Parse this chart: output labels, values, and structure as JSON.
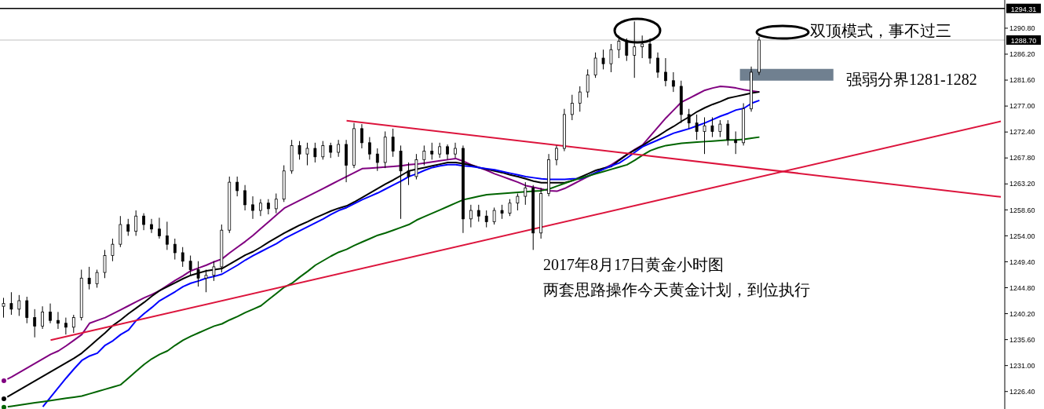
{
  "chart_data": {
    "type": "candlestick",
    "annotations": [
      "双顶模式，事不过三",
      "2017年8月17日黄金小时图",
      "两套思路操作今天黄金计划，到位执行"
    ],
    "categories": [
      null,
      null,
      null,
      null,
      null,
      null,
      null,
      null,
      null,
      null,
      null,
      null,
      null,
      null,
      null,
      null,
      null,
      null,
      null,
      null,
      null,
      null,
      null,
      null,
      null,
      null,
      null,
      null,
      null,
      null,
      null,
      null,
      null,
      null,
      null,
      null,
      null,
      null,
      null,
      null,
      null,
      null,
      null,
      null,
      null,
      null,
      null,
      null,
      null,
      null,
      null,
      null,
      null,
      null,
      null,
      null,
      null,
      null,
      null,
      null,
      null,
      null,
      null,
      null,
      null,
      null,
      null,
      null,
      null,
      null,
      null,
      null,
      null,
      null,
      null,
      null,
      null,
      null,
      null,
      null,
      null,
      null,
      null,
      null,
      null,
      null,
      null,
      null,
      null,
      null,
      null,
      null,
      null,
      null,
      null,
      null,
      null,
      null,
      null,
      null,
      null,
      null,
      null,
      null,
      null,
      null,
      null,
      null,
      null,
      null,
      null,
      null,
      null,
      null,
      null,
      null,
      null,
      null,
      null,
      null,
      null,
      null,
      null,
      null,
      null,
      null,
      null,
      null,
      null
    ],
    "color": "#000000",
    "ohlc": [
      [
        1241.5,
        1243.0,
        1239.5,
        1242.0
      ],
      [
        1242.0,
        1244.0,
        1240.0,
        1241.0
      ],
      [
        1241.0,
        1243.5,
        1239.8,
        1242.5
      ],
      [
        1242.5,
        1243.2,
        1238.5,
        1239.5
      ],
      [
        1239.5,
        1241.0,
        1236.0,
        1238.0
      ],
      [
        1238.0,
        1241.5,
        1237.5,
        1240.5
      ],
      [
        1240.5,
        1242.0,
        1238.5,
        1239.0
      ],
      [
        1239.0,
        1240.5,
        1237.5,
        1238.5
      ],
      [
        1238.5,
        1239.5,
        1236.5,
        1237.8
      ],
      [
        1237.8,
        1240.0,
        1236.8,
        1239.5
      ],
      [
        1239.5,
        1248.0,
        1239.0,
        1246.5
      ],
      [
        1246.5,
        1248.5,
        1244.5,
        1245.5
      ],
      [
        1245.5,
        1248.0,
        1244.8,
        1247.5
      ],
      [
        1247.5,
        1251.5,
        1246.5,
        1250.5
      ],
      [
        1250.5,
        1253.5,
        1249.5,
        1252.5
      ],
      [
        1252.5,
        1257.5,
        1252.0,
        1256.0
      ],
      [
        1256.0,
        1257.0,
        1254.0,
        1254.8
      ],
      [
        1254.8,
        1258.5,
        1254.0,
        1257.5
      ],
      [
        1257.5,
        1258.0,
        1255.0,
        1256.0
      ],
      [
        1256.0,
        1257.0,
        1254.5,
        1255.2
      ],
      [
        1255.2,
        1257.2,
        1253.5,
        1254.0
      ],
      [
        1254.0,
        1256.5,
        1251.5,
        1252.5
      ],
      [
        1252.5,
        1253.5,
        1249.8,
        1251.0
      ],
      [
        1251.0,
        1252.0,
        1248.5,
        1249.5
      ],
      [
        1249.5,
        1250.5,
        1247.0,
        1248.0
      ],
      [
        1248.0,
        1249.5,
        1245.0,
        1246.5
      ],
      [
        1246.5,
        1248.0,
        1244.0,
        1247.0
      ],
      [
        1247.0,
        1249.5,
        1246.0,
        1248.5
      ],
      [
        1248.5,
        1256.0,
        1247.5,
        1255.0
      ],
      [
        1255.0,
        1264.5,
        1254.5,
        1263.5
      ],
      [
        1263.5,
        1264.5,
        1261.0,
        1262.0
      ],
      [
        1262.0,
        1263.0,
        1258.5,
        1259.5
      ],
      [
        1259.5,
        1261.0,
        1257.0,
        1258.5
      ],
      [
        1258.5,
        1260.5,
        1257.5,
        1259.8
      ],
      [
        1259.8,
        1260.5,
        1257.8,
        1258.8
      ],
      [
        1258.8,
        1261.5,
        1258.0,
        1260.5
      ],
      [
        1260.5,
        1266.5,
        1260.0,
        1265.5
      ],
      [
        1265.5,
        1271.0,
        1265.0,
        1270.0
      ],
      [
        1270.0,
        1270.8,
        1267.5,
        1268.5
      ],
      [
        1268.5,
        1270.5,
        1266.5,
        1269.5
      ],
      [
        1269.5,
        1270.5,
        1267.0,
        1268.0
      ],
      [
        1268.0,
        1270.8,
        1267.5,
        1270.0
      ],
      [
        1270.0,
        1270.5,
        1267.8,
        1268.8
      ],
      [
        1268.8,
        1271.0,
        1268.0,
        1270.2
      ],
      [
        1270.2,
        1271.0,
        1263.5,
        1266.5
      ],
      [
        1266.5,
        1274.0,
        1266.0,
        1273.0
      ],
      [
        1273.0,
        1273.8,
        1269.5,
        1270.5
      ],
      [
        1270.5,
        1271.5,
        1267.5,
        1268.5
      ],
      [
        1268.5,
        1269.5,
        1265.5,
        1267.0
      ],
      [
        1267.0,
        1272.5,
        1266.0,
        1271.5
      ],
      [
        1271.5,
        1273.0,
        1268.0,
        1269.0
      ],
      [
        1269.0,
        1270.0,
        1257.0,
        1265.5
      ],
      [
        1265.5,
        1267.0,
        1263.0,
        1264.5
      ],
      [
        1264.5,
        1268.5,
        1264.0,
        1267.5
      ],
      [
        1267.5,
        1270.0,
        1266.5,
        1269.0
      ],
      [
        1269.0,
        1270.5,
        1267.5,
        1268.5
      ],
      [
        1268.5,
        1270.5,
        1267.8,
        1269.8
      ],
      [
        1269.8,
        1270.2,
        1267.5,
        1268.5
      ],
      [
        1268.5,
        1270.5,
        1267.8,
        1269.5
      ],
      [
        1269.5,
        1270.0,
        1254.5,
        1257.0
      ],
      [
        1257.0,
        1259.5,
        1255.5,
        1258.5
      ],
      [
        1258.5,
        1259.5,
        1256.5,
        1257.5
      ],
      [
        1257.5,
        1258.5,
        1255.5,
        1256.5
      ],
      [
        1256.5,
        1259.0,
        1256.0,
        1258.5
      ],
      [
        1258.5,
        1259.5,
        1257.0,
        1258.0
      ],
      [
        1258.0,
        1260.5,
        1257.5,
        1259.8
      ],
      [
        1259.8,
        1261.5,
        1258.5,
        1261.0
      ],
      [
        1261.0,
        1263.5,
        1259.5,
        1262.5
      ],
      [
        1262.5,
        1263.0,
        1251.5,
        1254.5
      ],
      [
        1254.5,
        1262.5,
        1253.5,
        1261.5
      ],
      [
        1261.5,
        1268.5,
        1261.0,
        1267.5
      ],
      [
        1267.5,
        1270.0,
        1266.5,
        1269.5
      ],
      [
        1269.5,
        1276.5,
        1269.0,
        1275.5
      ],
      [
        1275.5,
        1279.0,
        1274.5,
        1277.5
      ],
      [
        1277.5,
        1280.5,
        1276.0,
        1279.5
      ],
      [
        1279.5,
        1283.5,
        1278.5,
        1282.5
      ],
      [
        1282.5,
        1286.5,
        1282.0,
        1285.5
      ],
      [
        1285.5,
        1287.0,
        1283.5,
        1284.5
      ],
      [
        1284.5,
        1288.0,
        1283.0,
        1287.0
      ],
      [
        1287.0,
        1289.5,
        1285.5,
        1288.5
      ],
      [
        1288.5,
        1289.0,
        1285.0,
        1286.0
      ],
      [
        1286.0,
        1292.0,
        1282.0,
        1287.5
      ],
      [
        1287.5,
        1289.5,
        1285.5,
        1288.0
      ],
      [
        1288.0,
        1289.0,
        1284.5,
        1285.5
      ],
      [
        1285.5,
        1286.5,
        1282.0,
        1283.0
      ],
      [
        1283.0,
        1285.5,
        1280.5,
        1281.5
      ],
      [
        1281.5,
        1283.0,
        1279.5,
        1280.5
      ],
      [
        1280.5,
        1281.5,
        1274.0,
        1275.5
      ],
      [
        1275.5,
        1276.5,
        1273.0,
        1274.0
      ],
      [
        1274.0,
        1275.5,
        1271.0,
        1272.5
      ],
      [
        1272.5,
        1275.0,
        1268.5,
        1273.5
      ],
      [
        1273.5,
        1275.0,
        1271.5,
        1272.5
      ],
      [
        1272.5,
        1274.5,
        1271.5,
        1273.8
      ],
      [
        1273.8,
        1274.5,
        1270.0,
        1271.0
      ],
      [
        1271.0,
        1272.5,
        1268.5,
        1270.5
      ],
      [
        1270.5,
        1277.5,
        1270.0,
        1276.5
      ],
      [
        1276.5,
        1284.0,
        1276.0,
        1283.0
      ],
      [
        1283.0,
        1289.3,
        1282.5,
        1288.7
      ],
      null,
      null,
      null,
      null,
      null,
      null,
      null,
      null,
      null,
      null,
      null,
      null,
      null,
      null,
      null,
      null,
      null,
      null,
      null,
      null,
      null,
      null,
      null,
      null,
      null,
      null,
      null,
      null,
      null,
      null,
      null
    ],
    "series": [
      {
        "type": "line",
        "color": "#800080",
        "values": [
          1228.3,
          1229.0,
          1229.8,
          1230.6,
          1231.4,
          1232.2,
          1233.0,
          1233.6,
          1234.5,
          1235.5,
          1236.5,
          1238.5,
          1239.0,
          1239.5,
          1240.2,
          1240.9,
          1241.6,
          1242.3,
          1243.0,
          1243.6,
          1244.3,
          1245.2,
          1246.1,
          1246.9,
          1247.8,
          1248.3,
          1248.8,
          1249.4,
          1249.9,
          1251.0,
          1252.0,
          1253.0,
          1254.1,
          1255.3,
          1256.5,
          1257.7,
          1258.9,
          1259.6,
          1260.3,
          1261.0,
          1261.7,
          1262.4,
          1263.1,
          1263.8,
          1264.5,
          1265.2,
          1265.9,
          1266.0,
          1266.1,
          1266.2,
          1266.3,
          1266.4,
          1266.6,
          1266.7,
          1266.9,
          1267.1,
          1267.3,
          1267.5,
          1267.7,
          1267.2,
          1266.6,
          1266.1,
          1265.6,
          1265.0,
          1264.5,
          1264.0,
          1263.5,
          1262.9,
          1262.6,
          1262.3,
          1262.0,
          1261.9,
          1262.4,
          1263.1,
          1263.8,
          1264.5,
          1265.2,
          1265.9,
          1266.6,
          1267.5,
          1268.4,
          1269.3,
          1270.1,
          1271.7,
          1273.3,
          1274.9,
          1276.3,
          1277.7,
          1278.4,
          1279.1,
          1279.8,
          1280.2,
          1280.5,
          1280.4,
          1280.2,
          1279.9,
          1279.7,
          1279.5,
          null,
          null,
          null,
          null,
          null,
          null,
          null,
          null,
          null,
          null,
          null,
          null,
          null,
          null,
          null,
          null,
          null,
          null,
          null,
          null,
          null,
          null,
          null,
          null,
          null,
          null,
          null,
          null,
          null,
          null,
          null
        ]
      },
      {
        "type": "line",
        "color": "#000000",
        "values": [
          1225.1,
          1225.9,
          1226.7,
          1227.5,
          1228.3,
          1229.1,
          1229.9,
          1230.7,
          1231.5,
          1232.3,
          1233.2,
          1234.4,
          1235.6,
          1236.8,
          1238.1,
          1239.1,
          1240.2,
          1241.2,
          1242.2,
          1243.3,
          1244.3,
          1245.0,
          1245.7,
          1246.4,
          1247.0,
          1247.4,
          1247.8,
          1248.0,
          1248.2,
          1249.0,
          1249.8,
          1250.6,
          1251.2,
          1252.0,
          1252.9,
          1253.7,
          1254.5,
          1255.2,
          1255.9,
          1256.5,
          1257.2,
          1257.8,
          1258.4,
          1258.9,
          1259.3,
          1260.0,
          1260.8,
          1261.6,
          1262.4,
          1263.2,
          1263.9,
          1264.7,
          1265.5,
          1265.8,
          1266.1,
          1266.4,
          1266.7,
          1267.0,
          1267.0,
          1266.8,
          1266.5,
          1266.1,
          1265.8,
          1265.5,
          1265.2,
          1264.8,
          1264.5,
          1264.1,
          1263.7,
          1263.4,
          1263.4,
          1263.4,
          1263.4,
          1263.8,
          1264.4,
          1265.0,
          1265.6,
          1266.0,
          1266.3,
          1267.4,
          1268.4,
          1269.2,
          1270.0,
          1270.9,
          1271.7,
          1272.6,
          1273.4,
          1274.3,
          1275.1,
          1276.0,
          1276.7,
          1277.3,
          1277.8,
          1278.4,
          1278.7,
          1279.0,
          1279.3,
          1279.5,
          null,
          null,
          null,
          null,
          null,
          null,
          null,
          null,
          null,
          null,
          null,
          null,
          null,
          null,
          null,
          null,
          null,
          null,
          null,
          null,
          null,
          null,
          null,
          null,
          null,
          null,
          null,
          null,
          null,
          null,
          null
        ]
      },
      {
        "type": "line",
        "color": "#0000ff",
        "values": [
          null,
          null,
          null,
          null,
          null,
          1223.7,
          1225.4,
          1227.1,
          1228.8,
          1230.4,
          1231.9,
          1232.7,
          1233.2,
          1234.6,
          1235.4,
          1236.5,
          1237.3,
          1239.0,
          1240.2,
          1241.3,
          1242.5,
          1243.3,
          1244.1,
          1245.0,
          1245.6,
          1246.0,
          1246.5,
          1246.8,
          1247.2,
          1248.0,
          1248.8,
          1249.7,
          1250.5,
          1251.2,
          1251.9,
          1252.6,
          1253.5,
          1254.2,
          1254.9,
          1255.6,
          1256.3,
          1257.0,
          1257.8,
          1258.5,
          1259.0,
          1259.7,
          1260.4,
          1261.0,
          1261.6,
          1262.3,
          1263.0,
          1263.7,
          1264.5,
          1265.0,
          1265.6,
          1266.1,
          1266.4,
          1266.6,
          1266.6,
          1266.4,
          1266.3,
          1266.1,
          1265.9,
          1265.7,
          1265.4,
          1265.1,
          1264.8,
          1264.5,
          1264.3,
          1264.1,
          1264.0,
          1264.0,
          1264.0,
          1264.1,
          1264.1,
          1264.6,
          1265.2,
          1265.8,
          1266.4,
          1266.9,
          1267.8,
          1268.8,
          1269.8,
          1270.4,
          1271.0,
          1271.6,
          1272.2,
          1272.6,
          1273.0,
          1273.5,
          1274.0,
          1274.6,
          1275.2,
          1275.7,
          1276.3,
          1276.6,
          1277.5,
          1278.0,
          null,
          null,
          null,
          null,
          null,
          null,
          null,
          null,
          null,
          null,
          null,
          null,
          null,
          null,
          null,
          null,
          null,
          null,
          null,
          null,
          null,
          null,
          null,
          null,
          null,
          null,
          null,
          null,
          null,
          null,
          null
        ]
      },
      {
        "type": "line",
        "color": "#006400",
        "values": [
          1223.6,
          1223.8,
          1224.0,
          1224.2,
          1224.4,
          1224.6,
          1224.8,
          1225.0,
          1225.2,
          1225.4,
          1225.6,
          1226.0,
          1226.4,
          1226.8,
          1227.2,
          1227.6,
          1228.8,
          1230.0,
          1231.2,
          1232.2,
          1233.0,
          1233.6,
          1234.6,
          1235.5,
          1236.2,
          1236.8,
          1237.4,
          1238.0,
          1238.4,
          1239.1,
          1239.7,
          1240.4,
          1241.0,
          1241.6,
          1242.7,
          1243.8,
          1244.9,
          1245.6,
          1246.7,
          1247.7,
          1248.8,
          1249.6,
          1250.4,
          1251.1,
          1251.6,
          1252.3,
          1252.9,
          1253.5,
          1254.1,
          1254.5,
          1255.0,
          1255.5,
          1256.0,
          1256.8,
          1257.4,
          1258.0,
          1258.6,
          1259.2,
          1259.8,
          1260.4,
          1260.7,
          1261.0,
          1261.3,
          1261.4,
          1261.5,
          1261.6,
          1261.7,
          1261.8,
          1261.9,
          1262.0,
          1262.3,
          1262.8,
          1263.3,
          1263.8,
          1264.2,
          1264.6,
          1265.0,
          1265.4,
          1265.8,
          1266.2,
          1266.6,
          1267.4,
          1268.3,
          1269.1,
          1269.6,
          1270.0,
          1270.2,
          1270.4,
          1270.5,
          1270.6,
          1270.7,
          1270.8,
          1270.9,
          1271.0,
          1271.0,
          1271.1,
          1271.3,
          1271.5,
          null,
          null,
          null,
          null,
          null,
          null,
          null,
          null,
          null,
          null,
          null,
          null,
          null,
          null,
          null,
          null,
          null,
          null,
          null,
          null,
          null,
          null,
          null,
          null,
          null,
          null,
          null,
          null,
          null,
          null,
          null
        ]
      },
      {
        "type": "line",
        "color": "#dc143c",
        "values": [
          null,
          null,
          null,
          null,
          null,
          null,
          1235.5,
          null,
          null,
          null,
          null,
          null,
          null,
          null,
          null,
          null,
          null,
          null,
          null,
          null,
          null,
          null,
          null,
          null,
          null,
          null,
          null,
          null,
          null,
          null,
          null,
          null,
          null,
          null,
          null,
          null,
          null,
          null,
          null,
          null,
          null,
          null,
          null,
          null,
          null,
          null,
          null,
          null,
          null,
          null,
          null,
          null,
          null,
          null,
          null,
          null,
          null,
          null,
          null,
          null,
          null,
          null,
          null,
          null,
          null,
          null,
          null,
          null,
          null,
          null,
          null,
          null,
          null,
          null,
          null,
          null,
          null,
          null,
          null,
          null,
          null,
          null,
          null,
          null,
          null,
          null,
          null,
          null,
          null,
          null,
          null,
          null,
          null,
          null,
          null,
          null,
          null,
          null,
          null,
          null,
          null,
          null,
          null,
          null,
          null,
          null,
          null,
          null,
          null,
          null,
          null,
          null,
          null,
          null,
          null,
          null,
          null,
          null,
          null,
          null,
          null,
          null,
          null,
          null,
          null,
          null,
          null,
          null,
          1274.3
        ]
      },
      {
        "type": "line",
        "color": "#dc143c",
        "values": [
          null,
          null,
          null,
          null,
          null,
          null,
          null,
          null,
          null,
          null,
          null,
          null,
          null,
          null,
          null,
          null,
          null,
          null,
          null,
          null,
          null,
          null,
          null,
          null,
          null,
          null,
          null,
          null,
          null,
          null,
          null,
          null,
          null,
          null,
          null,
          null,
          null,
          null,
          null,
          null,
          null,
          null,
          null,
          null,
          1274.4,
          null,
          null,
          null,
          null,
          null,
          null,
          null,
          null,
          null,
          null,
          null,
          null,
          null,
          null,
          null,
          null,
          null,
          null,
          null,
          null,
          null,
          null,
          null,
          null,
          null,
          null,
          null,
          null,
          null,
          null,
          null,
          null,
          null,
          null,
          null,
          null,
          null,
          null,
          null,
          null,
          null,
          null,
          null,
          null,
          null,
          null,
          null,
          null,
          null,
          null,
          null,
          null,
          null,
          null,
          null,
          null,
          null,
          null,
          null,
          null,
          null,
          null,
          null,
          null,
          null,
          null,
          null,
          null,
          null,
          null,
          null,
          null,
          null,
          null,
          null,
          null,
          null,
          null,
          null,
          null,
          null,
          null,
          null,
          1260.9
        ]
      }
    ],
    "ylim": [
      1223.3,
      1295.8
    ],
    "yticks": [
      {
        "value": 1226.4,
        "label": "1226.40"
      },
      {
        "value": 1231.0,
        "label": "1231.00"
      },
      {
        "value": 1235.6,
        "label": "1235.60"
      },
      {
        "value": 1240.2,
        "label": "1240.20"
      },
      {
        "value": 1244.8,
        "label": "1244.80"
      },
      {
        "value": 1249.4,
        "label": "1249.40"
      },
      {
        "value": 1254.0,
        "label": "1254.00"
      },
      {
        "value": 1258.6,
        "label": "1258.60"
      },
      {
        "value": 1263.2,
        "label": "1263.20"
      },
      {
        "value": 1267.8,
        "label": "1267.80"
      },
      {
        "value": 1272.4,
        "label": "1272.40"
      },
      {
        "value": 1277.0,
        "label": "1277.00"
      },
      {
        "value": 1281.6,
        "label": "1281.60"
      },
      {
        "value": 1286.2,
        "label": "1286.20"
      },
      {
        "value": 1290.8,
        "label": "1290.80"
      }
    ],
    "ref_lines": [
      {
        "axis": "y",
        "value": 1294.31,
        "label": "1294.31",
        "color": "#000000"
      },
      {
        "axis": "y",
        "value": 1288.7,
        "label": "1288.70",
        "color": "#c0c0c0"
      }
    ],
    "bands": [
      {
        "axis": "y",
        "from": 1281.5,
        "to": 1283.6,
        "label": "强弱分界1281-1282",
        "color": "#708090"
      }
    ],
    "tick_labels": "y"
  }
}
